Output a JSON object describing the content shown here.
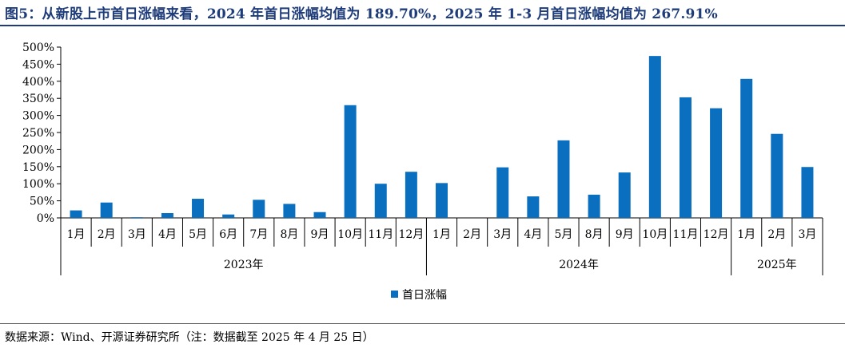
{
  "figure": {
    "title": "图5：从新股上市首日涨幅来看，2024 年首日涨幅均值为 189.70%，2025 年 1-3 月首日涨幅均值为 267.91%",
    "source": "数据来源：Wind、开源证券研究所（注：数据截至 2025 年 4 月 25 日）"
  },
  "chart_data": {
    "type": "bar",
    "y_ticks": [
      "0%",
      "50%",
      "100%",
      "150%",
      "200%",
      "250%",
      "300%",
      "350%",
      "400%",
      "450%",
      "500%"
    ],
    "ylim": [
      0,
      500
    ],
    "categories": [
      "1月",
      "2月",
      "3月",
      "4月",
      "5月",
      "6月",
      "7月",
      "8月",
      "9月",
      "10月",
      "11月",
      "12月",
      "1月",
      "2月",
      "3月",
      "4月",
      "5月",
      "8月",
      "9月",
      "10月",
      "11月",
      "12月",
      "1月",
      "2月",
      "3月"
    ],
    "groups": [
      {
        "label": "2023年",
        "count": 12
      },
      {
        "label": "2024年",
        "count": 10
      },
      {
        "label": "2025年",
        "count": 3
      }
    ],
    "series": [
      {
        "name": "首日涨幅",
        "values": [
          22,
          45,
          2,
          14,
          56,
          10,
          53,
          41,
          17,
          330,
          100,
          135,
          102,
          0,
          148,
          63,
          227,
          68,
          133,
          474,
          353,
          321,
          407,
          246,
          149
        ]
      }
    ],
    "legend": "bottom-center",
    "grid": false,
    "colors": {
      "bar": "#0b6fc0",
      "axis": "#000000"
    }
  }
}
